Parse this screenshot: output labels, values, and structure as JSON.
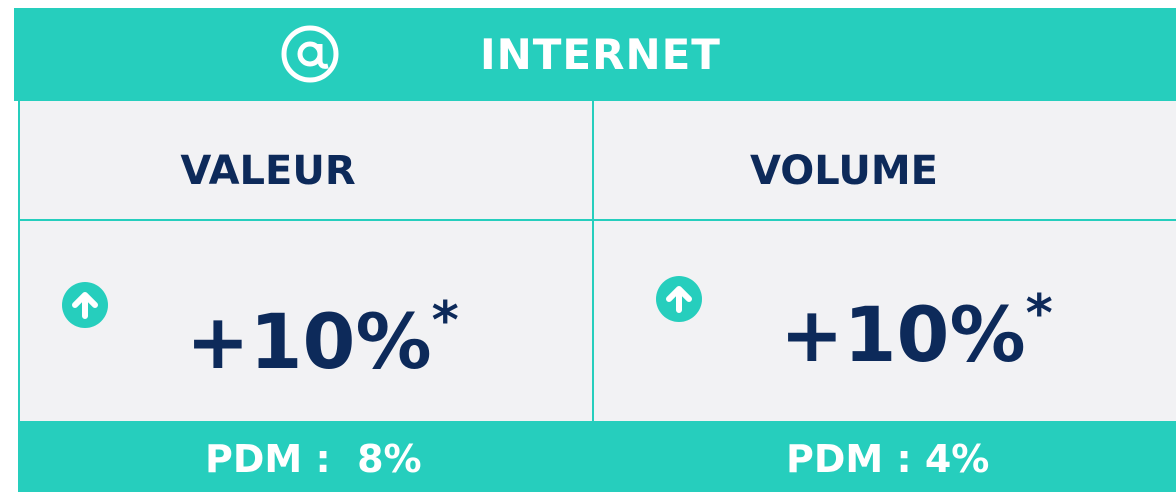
{
  "header": {
    "title": "INTERNET"
  },
  "columns": [
    {
      "label": "VALEUR",
      "value": "+10%",
      "note": "*",
      "pdm": "PDM :  8%"
    },
    {
      "label": "VOLUME",
      "value": "+10%",
      "note": "*",
      "pdm": "PDM : 4%"
    }
  ]
}
